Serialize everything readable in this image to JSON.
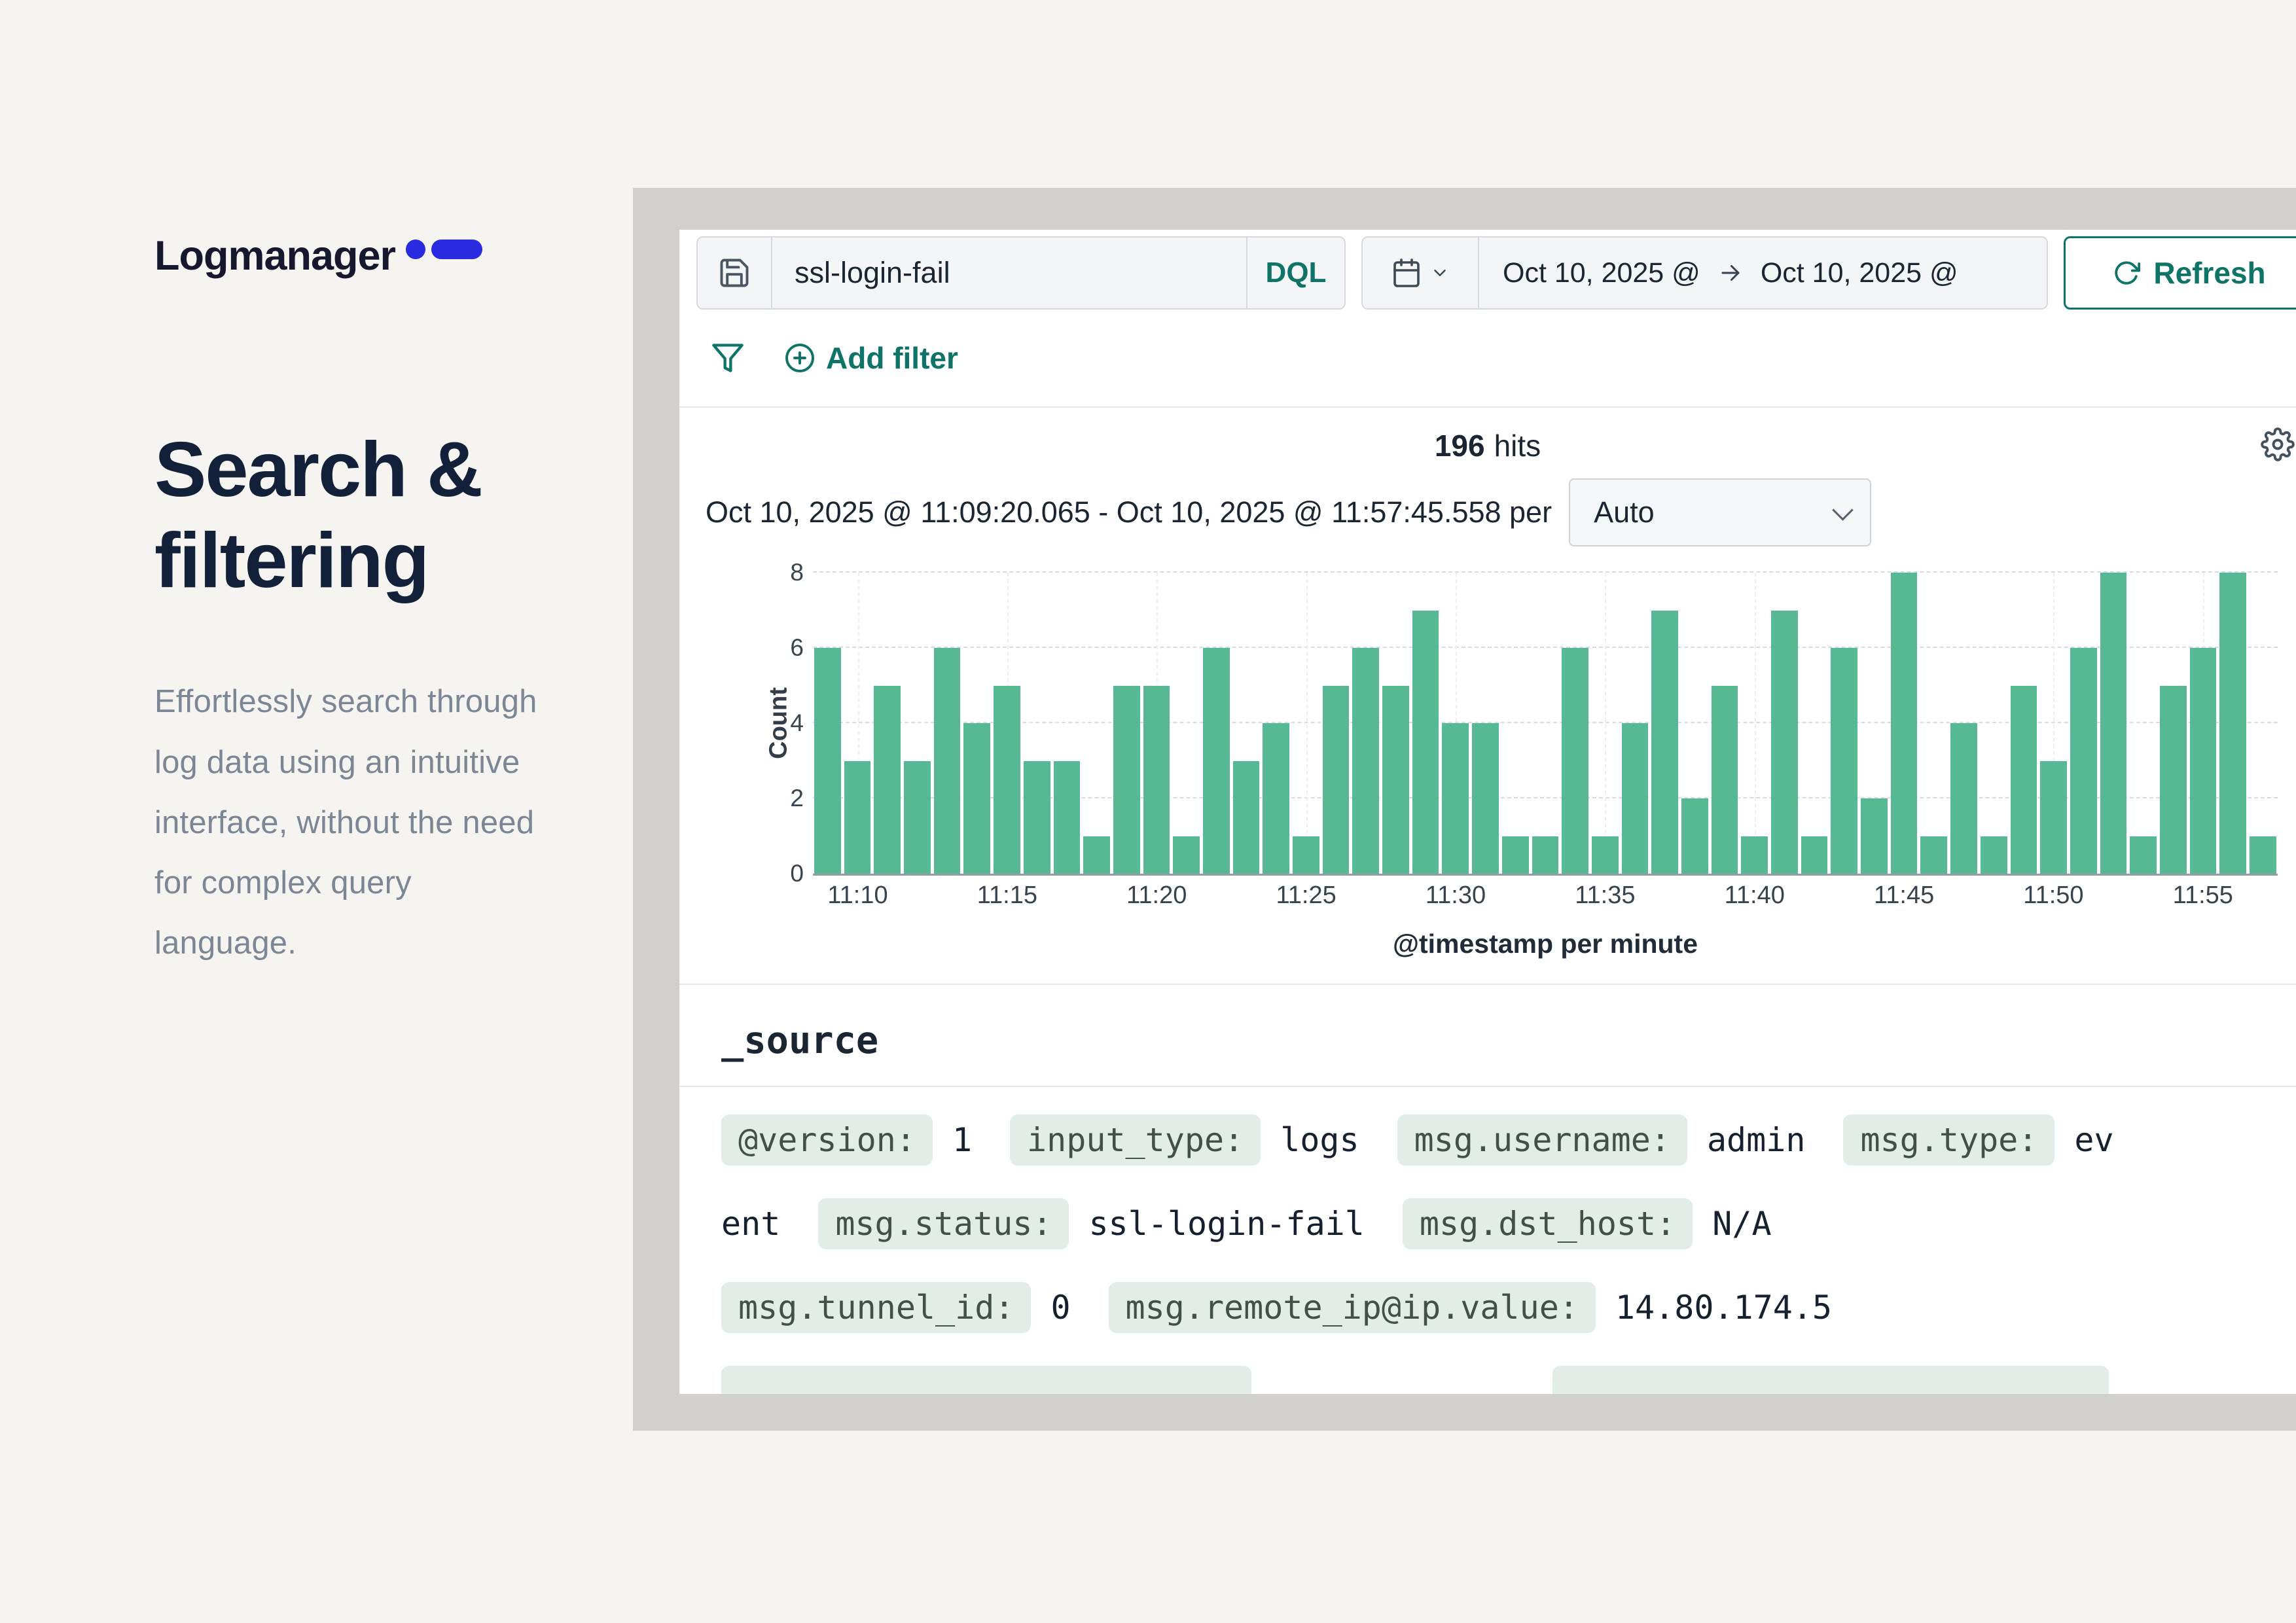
{
  "page": {
    "logo_text": "Logmanager",
    "heading": "Search & filtering",
    "paragraph": "Effortlessly search through log data using an intuitive interface, without the need for complex query language."
  },
  "toolbar": {
    "query": "ssl-login-fail",
    "query_lang": "DQL",
    "date_from": "Oct 10, 2025 @",
    "date_to": "Oct 10, 2025 @",
    "refresh_label": "Refresh"
  },
  "filters": {
    "add_filter_label": "Add filter"
  },
  "results": {
    "hits_count": "196",
    "hits_label": "hits",
    "range_text": "Oct 10, 2025 @ 11:09:20.065 - Oct 10, 2025 @ 11:57:45.558 per",
    "interval_selected": "Auto"
  },
  "chart_data": {
    "type": "bar",
    "title": "196 hits",
    "x": [
      "11:09",
      "11:10",
      "11:11",
      "11:12",
      "11:13",
      "11:14",
      "11:15",
      "11:16",
      "11:17",
      "11:18",
      "11:19",
      "11:20",
      "11:21",
      "11:22",
      "11:23",
      "11:24",
      "11:25",
      "11:26",
      "11:27",
      "11:28",
      "11:29",
      "11:30",
      "11:31",
      "11:32",
      "11:33",
      "11:34",
      "11:35",
      "11:36",
      "11:37",
      "11:38",
      "11:39",
      "11:40",
      "11:41",
      "11:42",
      "11:43",
      "11:44",
      "11:45",
      "11:46",
      "11:47",
      "11:48",
      "11:49",
      "11:50",
      "11:51",
      "11:52",
      "11:53",
      "11:54",
      "11:55",
      "11:56",
      "11:57"
    ],
    "values": [
      6,
      3,
      5,
      3,
      6,
      4,
      5,
      3,
      3,
      1,
      5,
      5,
      1,
      6,
      3,
      4,
      1,
      5,
      6,
      5,
      7,
      4,
      4,
      1,
      1,
      6,
      1,
      4,
      7,
      2,
      5,
      1,
      7,
      1,
      6,
      2,
      8,
      1,
      4,
      1,
      5,
      3,
      6,
      8,
      1,
      5,
      6,
      8,
      1
    ],
    "ylabel": "Count",
    "xlabel": "@timestamp per minute",
    "ylim": [
      0,
      8
    ],
    "yticks": [
      0,
      2,
      4,
      6,
      8
    ],
    "xticks": [
      "11:10",
      "11:15",
      "11:20",
      "11:25",
      "11:30",
      "11:35",
      "11:40",
      "11:45",
      "11:50",
      "11:55"
    ],
    "bar_color": "#57b993",
    "legend": false,
    "grid": true
  },
  "log_document": {
    "section_title": "_source",
    "rows": [
      {
        "segments": [
          {
            "type": "pill",
            "text": "@version:"
          },
          {
            "type": "value",
            "text": "1"
          },
          {
            "type": "pill",
            "text": "input_type:"
          },
          {
            "type": "value",
            "text": "logs"
          },
          {
            "type": "pill",
            "text": "msg.username:"
          },
          {
            "type": "value",
            "text": "admin"
          },
          {
            "type": "pill",
            "text": "msg.type:"
          },
          {
            "type": "value",
            "text": "ev"
          }
        ]
      },
      {
        "segments": [
          {
            "type": "value",
            "text": "ent"
          },
          {
            "type": "pill",
            "text": "msg.status:"
          },
          {
            "type": "value",
            "text": "ssl-login-fail"
          },
          {
            "type": "pill",
            "text": "msg.dst_host:"
          },
          {
            "type": "value",
            "text": "N/A"
          }
        ]
      },
      {
        "segments": [
          {
            "type": "pill",
            "text": "msg.tunnel_id:"
          },
          {
            "type": "value",
            "text": "0"
          },
          {
            "type": "pill",
            "text": "msg.remote_ip@ip.value:"
          },
          {
            "type": "value",
            "text": "14.80.174.5"
          }
        ]
      },
      {
        "segments": [
          {
            "type": "pill-cut",
            "text": ""
          },
          {
            "type": "spacer"
          },
          {
            "type": "pill-cut2",
            "text": ""
          }
        ]
      }
    ]
  },
  "colors": {
    "accent_teal": "#0f7468",
    "bar_green": "#57b993",
    "logo_blue": "#2a2ae0",
    "frame_gray": "#d2d0cc",
    "page_bg": "#f5f4f1",
    "pill_bg": "#e3ede7"
  }
}
